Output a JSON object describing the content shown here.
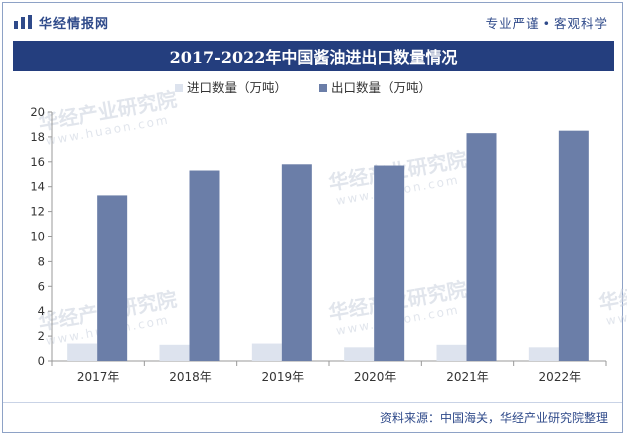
{
  "header": {
    "brand": "华经情报网",
    "slogan_left": "专业严谨",
    "slogan_right": "客观科学"
  },
  "footer": {
    "source": "资料来源：中国海关，华经产业研究院整理"
  },
  "watermark": {
    "text": "华经产业研究院",
    "sub": "www.huaon.com"
  },
  "colors": {
    "import": "#dde3ee",
    "export": "#6b7ea8",
    "title_bg": "#243e7e"
  },
  "chart_data": {
    "type": "bar",
    "title": "2017-2022年中国酱油进出口数量情况",
    "categories": [
      "2017年",
      "2018年",
      "2019年",
      "2020年",
      "2021年",
      "2022年"
    ],
    "series": [
      {
        "name": "进口数量（万吨）",
        "values": [
          1.4,
          1.3,
          1.4,
          1.1,
          1.3,
          1.1
        ]
      },
      {
        "name": "出口数量（万吨）",
        "values": [
          13.3,
          15.3,
          15.8,
          15.7,
          18.3,
          18.5
        ]
      }
    ],
    "ylim": [
      0,
      20
    ],
    "yticks": [
      0,
      2,
      4,
      6,
      8,
      10,
      12,
      14,
      16,
      18,
      20
    ],
    "legend": "top-left",
    "grid": false
  }
}
